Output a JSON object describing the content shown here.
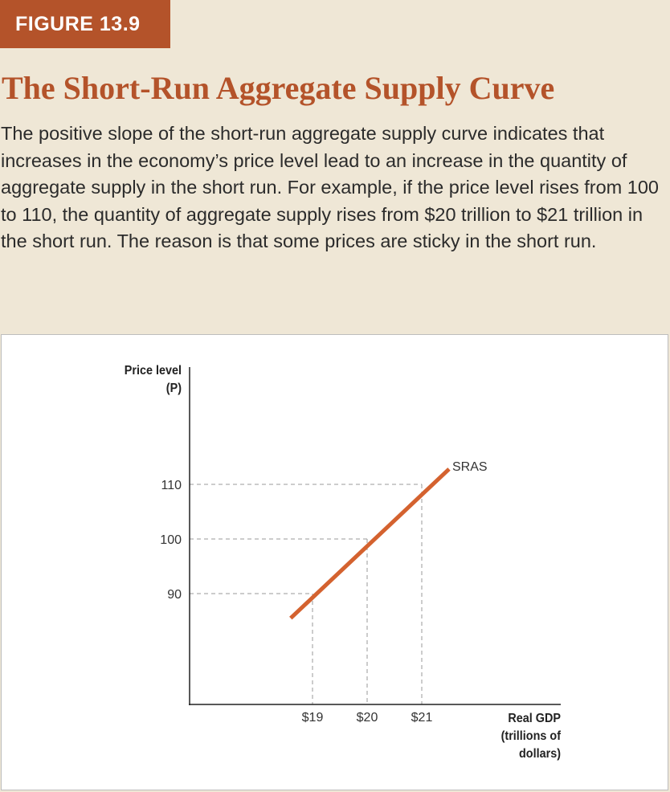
{
  "figure": {
    "label": "FIGURE 13.9",
    "title": "The Short-Run Aggregate Supply Curve",
    "caption": "The positive slope of the short-run aggregate supply curve indicates that increases in the economy’s price level lead to an increase in the quantity of aggregate supply in the short run. For example, if the price level rises from 100 to 110, the quantity of aggregate supply rises from $20 trillion to $21 trillion in the short run. The reason is that some prices are sticky in the short run."
  },
  "colors": {
    "accent": "#b4532a",
    "panel_background": "#efe7d6",
    "curve": "#d4622f",
    "axis": "#222222",
    "guide": "#9a9a9a"
  },
  "chart_data": {
    "type": "line",
    "ylabel": "Price level\n(P)",
    "xlabel": "Real GDP\n(trillions of\ndollars)",
    "series": [
      {
        "name": "SRAS",
        "x": [
          18.6,
          21.5
        ],
        "y": [
          85.5,
          112.8
        ]
      }
    ],
    "x_ticks": [
      {
        "value": 19,
        "label": "$19"
      },
      {
        "value": 20,
        "label": "$20"
      },
      {
        "value": 21,
        "label": "$21"
      }
    ],
    "y_ticks": [
      {
        "value": 90,
        "label": "90"
      },
      {
        "value": 100,
        "label": "100"
      },
      {
        "value": 110,
        "label": "110"
      }
    ],
    "reference_points": [
      {
        "x": 19,
        "y": 90
      },
      {
        "x": 20,
        "y": 100
      },
      {
        "x": 21,
        "y": 110
      }
    ],
    "grid": false,
    "legend": "none"
  }
}
